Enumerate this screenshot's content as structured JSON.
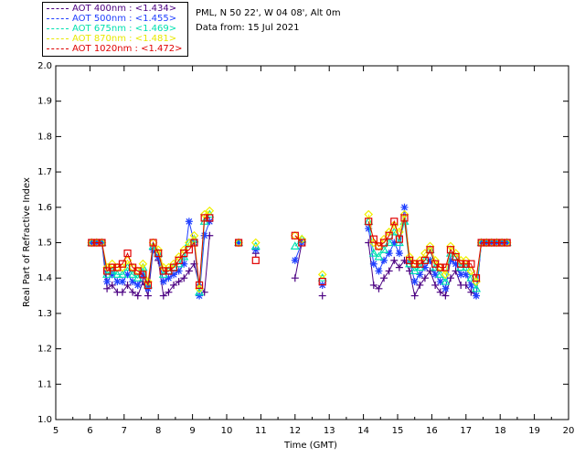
{
  "header": {
    "site": "PML, N 50 22', W 04 08', Alt 0m",
    "date": "Data from: 15 Jul 2021"
  },
  "legend": [
    {
      "label": "AOT  400nm : <1.434>",
      "color": "#4b0082"
    },
    {
      "label": "AOT  500nm : <1.455>",
      "color": "#1f3fff"
    },
    {
      "label": "AOT  675nm : <1.469>",
      "color": "#00e0b0"
    },
    {
      "label": "AOT  870nm : <1.481>",
      "color": "#f0f000"
    },
    {
      "label": "AOT 1020nm : <1.472>",
      "color": "#e00000"
    }
  ],
  "chart_data": {
    "type": "scatter",
    "title": "",
    "xlabel": "Time (GMT)",
    "ylabel": "Real Part of Refractive Index",
    "xlim": [
      5,
      20
    ],
    "ylim": [
      1.0,
      2.0
    ],
    "xticks": [
      "5",
      "6",
      "7",
      "8",
      "9",
      "10",
      "11",
      "12",
      "13",
      "14",
      "15",
      "16",
      "17",
      "18",
      "19",
      "20"
    ],
    "yticks": [
      "1.0",
      "1.1",
      "1.2",
      "1.3",
      "1.4",
      "1.5",
      "1.6",
      "1.7",
      "1.8",
      "1.9",
      "2.0"
    ],
    "x": [
      6.05,
      6.2,
      6.35,
      6.5,
      6.65,
      6.8,
      6.95,
      7.1,
      7.25,
      7.4,
      7.55,
      7.7,
      7.85,
      8.0,
      8.15,
      8.3,
      8.45,
      8.6,
      8.75,
      8.9,
      9.05,
      9.2,
      9.35,
      9.5,
      10.35,
      10.85,
      12.0,
      12.2,
      12.8,
      14.15,
      14.3,
      14.45,
      14.6,
      14.75,
      14.9,
      15.05,
      15.2,
      15.35,
      15.5,
      15.65,
      15.8,
      15.95,
      16.1,
      16.25,
      16.4,
      16.55,
      16.7,
      16.85,
      17.0,
      17.15,
      17.3,
      17.45,
      17.6,
      17.75,
      17.9,
      18.05,
      18.2
    ],
    "series": [
      {
        "name": "AOT 400nm",
        "marker": "plus",
        "color": "#4b0082",
        "values": [
          1.5,
          1.5,
          1.5,
          1.37,
          1.38,
          1.36,
          1.36,
          1.38,
          1.36,
          1.35,
          1.39,
          1.35,
          1.48,
          1.45,
          1.35,
          1.36,
          1.38,
          1.39,
          1.4,
          1.42,
          1.44,
          1.38,
          1.36,
          1.52,
          1.5,
          1.47,
          1.4,
          1.5,
          1.35,
          1.5,
          1.38,
          1.37,
          1.4,
          1.42,
          1.45,
          1.43,
          1.45,
          1.42,
          1.35,
          1.38,
          1.4,
          1.42,
          1.38,
          1.36,
          1.35,
          1.4,
          1.42,
          1.38,
          1.38,
          1.36,
          1.35,
          1.5,
          1.5,
          1.5,
          1.5,
          1.5,
          1.5
        ]
      },
      {
        "name": "AOT 500nm",
        "marker": "star",
        "color": "#1f3fff",
        "values": [
          1.5,
          1.5,
          1.5,
          1.39,
          1.41,
          1.39,
          1.39,
          1.41,
          1.39,
          1.38,
          1.41,
          1.37,
          1.48,
          1.46,
          1.39,
          1.4,
          1.41,
          1.42,
          1.44,
          1.56,
          1.5,
          1.35,
          1.52,
          1.56,
          1.5,
          1.48,
          1.45,
          1.5,
          1.38,
          1.54,
          1.44,
          1.42,
          1.45,
          1.47,
          1.5,
          1.47,
          1.6,
          1.45,
          1.39,
          1.41,
          1.43,
          1.45,
          1.41,
          1.39,
          1.37,
          1.45,
          1.44,
          1.41,
          1.41,
          1.38,
          1.35,
          1.5,
          1.5,
          1.5,
          1.5,
          1.5,
          1.5
        ]
      },
      {
        "name": "AOT 675nm",
        "marker": "triangle",
        "color": "#00e0b0",
        "values": [
          1.5,
          1.5,
          1.5,
          1.41,
          1.42,
          1.41,
          1.41,
          1.43,
          1.41,
          1.4,
          1.43,
          1.38,
          1.49,
          1.47,
          1.41,
          1.42,
          1.43,
          1.44,
          1.46,
          1.5,
          1.51,
          1.36,
          1.56,
          1.58,
          1.5,
          1.49,
          1.49,
          1.51,
          1.4,
          1.56,
          1.47,
          1.46,
          1.48,
          1.5,
          1.53,
          1.5,
          1.56,
          1.44,
          1.42,
          1.43,
          1.45,
          1.48,
          1.43,
          1.41,
          1.39,
          1.47,
          1.46,
          1.43,
          1.43,
          1.4,
          1.37,
          1.5,
          1.5,
          1.5,
          1.5,
          1.5,
          1.5
        ]
      },
      {
        "name": "AOT 870nm",
        "marker": "diamond",
        "color": "#f0f000",
        "values": [
          1.5,
          1.5,
          1.5,
          1.43,
          1.44,
          1.43,
          1.43,
          1.45,
          1.43,
          1.42,
          1.44,
          1.39,
          1.5,
          1.48,
          1.43,
          1.43,
          1.44,
          1.46,
          1.48,
          1.5,
          1.52,
          1.37,
          1.58,
          1.59,
          1.5,
          1.5,
          1.52,
          1.51,
          1.41,
          1.58,
          1.5,
          1.49,
          1.51,
          1.53,
          1.55,
          1.53,
          1.58,
          1.46,
          1.44,
          1.45,
          1.47,
          1.49,
          1.45,
          1.43,
          1.41,
          1.49,
          1.47,
          1.45,
          1.45,
          1.42,
          1.39,
          1.5,
          1.5,
          1.5,
          1.5,
          1.5,
          1.5
        ]
      },
      {
        "name": "AOT 1020nm",
        "marker": "square",
        "color": "#e00000",
        "values": [
          1.5,
          1.5,
          1.5,
          1.42,
          1.43,
          1.43,
          1.44,
          1.47,
          1.43,
          1.42,
          1.41,
          1.38,
          1.5,
          1.47,
          1.42,
          1.42,
          1.43,
          1.45,
          1.47,
          1.48,
          1.5,
          1.38,
          1.57,
          1.57,
          1.5,
          1.45,
          1.52,
          1.5,
          1.39,
          1.56,
          1.51,
          1.49,
          1.5,
          1.52,
          1.56,
          1.51,
          1.57,
          1.45,
          1.44,
          1.44,
          1.45,
          1.48,
          1.44,
          1.43,
          1.43,
          1.48,
          1.46,
          1.44,
          1.44,
          1.44,
          1.4,
          1.5,
          1.5,
          1.5,
          1.5,
          1.5,
          1.5
        ]
      }
    ]
  }
}
